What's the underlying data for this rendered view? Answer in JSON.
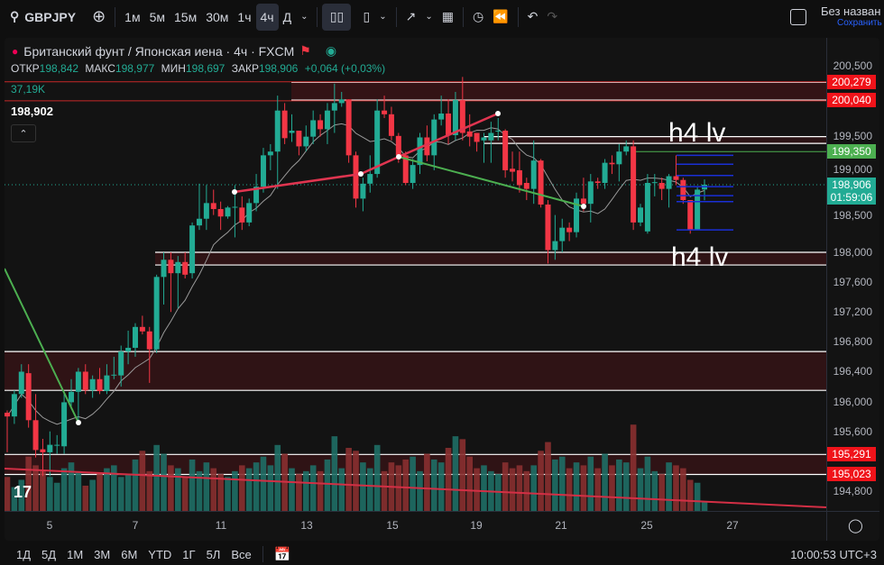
{
  "toolbar": {
    "symbol": "GBPJPY",
    "intervals": [
      "1м",
      "5м",
      "15м",
      "30м",
      "1ч",
      "4ч",
      "Д"
    ],
    "active_interval": "4ч",
    "layout_name": "Без назван",
    "save_label": "Сохранить"
  },
  "legend": {
    "title": "Британский фунт / Японская иена · 4ч · FXCM",
    "open_label": "ОТКР",
    "open": "198,842",
    "high_label": "МАКС",
    "high": "198,977",
    "low_label": "МИН",
    "low": "198,697",
    "close_label": "ЗАКР",
    "close": "198,906",
    "change": "+0,064 (+0,03%)",
    "volume": "37,19K",
    "indicator_value": "198,902"
  },
  "price_axis": {
    "ticks": [
      "200,500",
      "199,500",
      "199,000",
      "198,500",
      "198,000",
      "197,600",
      "197,200",
      "196,800",
      "196,400",
      "196,000",
      "195,600",
      "194,800"
    ],
    "tick_values": [
      200.5,
      199.5,
      199.0,
      198.5,
      198.0,
      197.6,
      197.2,
      196.8,
      196.4,
      196.0,
      195.6,
      194.8
    ],
    "labels": [
      {
        "text": "200,279",
        "value": 200.279,
        "color": "#f0131a"
      },
      {
        "text": "200,040",
        "value": 200.04,
        "color": "#f0131a"
      },
      {
        "text": "199,350",
        "value": 199.35,
        "color": "#4caf50"
      },
      {
        "text": "195,291",
        "value": 195.291,
        "color": "#f0131a"
      },
      {
        "text": "195,023",
        "value": 195.023,
        "color": "#f0131a"
      }
    ],
    "current": {
      "price": "198,906",
      "value": 198.906,
      "countdown": "01:59:06",
      "color": "#22ab94"
    }
  },
  "time_axis": [
    "5",
    "7",
    "11",
    "13",
    "15",
    "19",
    "21",
    "25",
    "27"
  ],
  "annotations": [
    "h4 lv",
    "h4 lv"
  ],
  "bottom": {
    "ranges": [
      "1Д",
      "5Д",
      "1М",
      "3М",
      "6М",
      "YTD",
      "1Г",
      "5Л",
      "Все"
    ],
    "clock": "10:00:53 UTC+3"
  },
  "colors": {
    "up": "#22ab94",
    "down": "#f23645",
    "bg": "#131313"
  },
  "chart_data": {
    "type": "candlestick",
    "ylim": [
      194.6,
      200.7
    ],
    "candles": [
      [
        195.85,
        195.88,
        195.32,
        195.8
      ],
      [
        195.8,
        196.15,
        195.7,
        196.1
      ],
      [
        196.1,
        196.5,
        196.05,
        196.4
      ],
      [
        196.38,
        196.5,
        195.65,
        195.75
      ],
      [
        195.75,
        196.1,
        195.25,
        195.35
      ],
      [
        195.36,
        195.5,
        195.0,
        195.32
      ],
      [
        195.32,
        195.6,
        195.0,
        195.42
      ],
      [
        195.42,
        195.55,
        195.3,
        195.42
      ],
      [
        195.4,
        196.1,
        195.3,
        195.99
      ],
      [
        195.99,
        196.3,
        195.9,
        196.13
      ],
      [
        196.13,
        196.45,
        195.73,
        196.4
      ],
      [
        196.4,
        196.5,
        196.1,
        196.15
      ],
      [
        196.15,
        196.35,
        196.05,
        196.3
      ],
      [
        196.3,
        196.45,
        196.1,
        196.14
      ],
      [
        196.14,
        196.5,
        196.1,
        196.35
      ],
      [
        196.35,
        196.6,
        196.3,
        196.36
      ],
      [
        196.35,
        196.75,
        196.2,
        196.67
      ],
      [
        196.67,
        196.95,
        196.5,
        196.72
      ],
      [
        196.72,
        197.05,
        196.6,
        197.0
      ],
      [
        197.0,
        197.15,
        196.9,
        196.94
      ],
      [
        196.94,
        197.0,
        196.25,
        196.7
      ],
      [
        196.7,
        197.7,
        196.65,
        197.67
      ],
      [
        197.67,
        198.0,
        197.3,
        197.9
      ],
      [
        197.9,
        198.0,
        197.2,
        197.72
      ],
      [
        197.72,
        197.95,
        197.25,
        197.87
      ],
      [
        197.87,
        198.0,
        197.65,
        197.7
      ],
      [
        197.72,
        198.4,
        197.65,
        198.36
      ],
      [
        198.36,
        198.92,
        198.3,
        198.45
      ],
      [
        198.45,
        198.9,
        198.3,
        198.66
      ],
      [
        198.66,
        198.84,
        198.5,
        198.58
      ],
      [
        198.58,
        198.68,
        198.3,
        198.48
      ],
      [
        198.48,
        198.62,
        198.45,
        198.6
      ],
      [
        198.6,
        198.9,
        198.2,
        198.61
      ],
      [
        198.6,
        198.75,
        198.3,
        198.4
      ],
      [
        198.4,
        198.72,
        198.35,
        198.66
      ],
      [
        198.66,
        199.05,
        198.55,
        198.88
      ],
      [
        198.88,
        199.4,
        198.8,
        199.3
      ],
      [
        199.3,
        199.45,
        199.1,
        199.35
      ],
      [
        199.35,
        200.1,
        198.85,
        199.9
      ],
      [
        199.9,
        200.0,
        199.45,
        199.53
      ],
      [
        199.6,
        199.85,
        199.48,
        199.63
      ],
      [
        199.63,
        199.6,
        199.3,
        199.42
      ],
      [
        199.42,
        199.7,
        199.35,
        199.55
      ],
      [
        199.55,
        199.9,
        199.45,
        199.77
      ],
      [
        199.77,
        199.85,
        199.55,
        199.65
      ],
      [
        199.65,
        200.0,
        199.45,
        199.9
      ],
      [
        199.9,
        200.26,
        199.6,
        200.0
      ],
      [
        200.0,
        200.15,
        199.95,
        200.05
      ],
      [
        200.05,
        200.05,
        199.2,
        199.3
      ],
      [
        199.3,
        199.35,
        198.6,
        198.72
      ],
      [
        198.72,
        199.0,
        198.55,
        198.92
      ],
      [
        198.92,
        199.3,
        198.8,
        199.05
      ],
      [
        199.05,
        200.05,
        199.0,
        199.9
      ],
      [
        199.9,
        200.1,
        199.8,
        199.85
      ],
      [
        199.85,
        199.95,
        199.5,
        199.56
      ],
      [
        199.56,
        199.6,
        199.2,
        199.3
      ],
      [
        199.3,
        199.35,
        198.9,
        198.93
      ],
      [
        198.93,
        199.25,
        198.85,
        199.17
      ],
      [
        199.17,
        199.6,
        199.05,
        199.54
      ],
      [
        199.54,
        199.7,
        199.22,
        199.3
      ],
      [
        199.3,
        199.85,
        199.1,
        199.78
      ],
      [
        199.78,
        200.1,
        199.7,
        199.86
      ],
      [
        199.86,
        200.05,
        199.45,
        199.57
      ],
      [
        199.57,
        200.15,
        199.5,
        200.04
      ],
      [
        200.04,
        200.35,
        199.5,
        199.6
      ],
      [
        199.62,
        199.85,
        199.42,
        199.55
      ],
      [
        199.6,
        199.55,
        199.35,
        199.48
      ],
      [
        199.5,
        199.6,
        199.2,
        199.54
      ],
      [
        199.5,
        199.75,
        199.2,
        199.6
      ],
      [
        199.62,
        199.8,
        199.5,
        199.63
      ],
      [
        199.63,
        199.65,
        199.0,
        199.1
      ],
      [
        199.12,
        199.35,
        198.95,
        199.08
      ],
      [
        199.1,
        199.35,
        198.8,
        198.9
      ],
      [
        198.93,
        199.0,
        198.7,
        198.85
      ],
      [
        198.85,
        199.5,
        198.65,
        199.23
      ],
      [
        199.23,
        199.25,
        198.6,
        198.64
      ],
      [
        198.64,
        198.7,
        197.85,
        198.03
      ],
      [
        198.03,
        198.5,
        197.9,
        198.15
      ],
      [
        198.15,
        198.45,
        198.0,
        198.33
      ],
      [
        198.33,
        198.4,
        198.15,
        198.27
      ],
      [
        198.27,
        198.8,
        198.2,
        198.72
      ],
      [
        198.72,
        199.0,
        198.55,
        198.65
      ],
      [
        198.65,
        199.05,
        198.4,
        198.95
      ],
      [
        198.95,
        199.0,
        198.85,
        198.93
      ],
      [
        198.93,
        199.25,
        198.85,
        199.2
      ],
      [
        199.2,
        199.3,
        199.05,
        199.18
      ],
      [
        199.18,
        199.45,
        198.95,
        199.35
      ],
      [
        199.35,
        199.5,
        199.3,
        199.42
      ],
      [
        199.42,
        199.5,
        198.3,
        198.4
      ],
      [
        198.4,
        198.65,
        198.35,
        198.6
      ],
      [
        198.28,
        199.05,
        198.25,
        198.93
      ],
      [
        198.93,
        199.05,
        198.75,
        198.94
      ],
      [
        198.93,
        199.0,
        198.7,
        198.85
      ],
      [
        198.85,
        199.05,
        198.6,
        199.02
      ],
      [
        199.02,
        199.3,
        198.9,
        198.97
      ],
      [
        198.97,
        199.0,
        198.65,
        198.7
      ],
      [
        198.7,
        198.7,
        198.25,
        198.3
      ],
      [
        198.3,
        198.87,
        198.3,
        198.84
      ],
      [
        198.842,
        198.977,
        198.697,
        198.906
      ]
    ],
    "volume_k": [
      120,
      85,
      110,
      190,
      160,
      140,
      120,
      100,
      150,
      170,
      140,
      90,
      110,
      130,
      150,
      160,
      120,
      130,
      180,
      210,
      140,
      230,
      200,
      160,
      150,
      120,
      180,
      140,
      170,
      150,
      130,
      120,
      140,
      160,
      150,
      170,
      190,
      160,
      230,
      200,
      150,
      130,
      140,
      160,
      140,
      180,
      260,
      150,
      220,
      210,
      170,
      150,
      230,
      140,
      170,
      160,
      180,
      190,
      140,
      200,
      180,
      170,
      220,
      260,
      250,
      190,
      150,
      160,
      140,
      130,
      170,
      150,
      160,
      140,
      160,
      210,
      240,
      180,
      190,
      150,
      170,
      160,
      190,
      150,
      200,
      160,
      180,
      170,
      300,
      150,
      190,
      140,
      130,
      170,
      160,
      150,
      110,
      100,
      37.19
    ],
    "sma_period": 9
  }
}
